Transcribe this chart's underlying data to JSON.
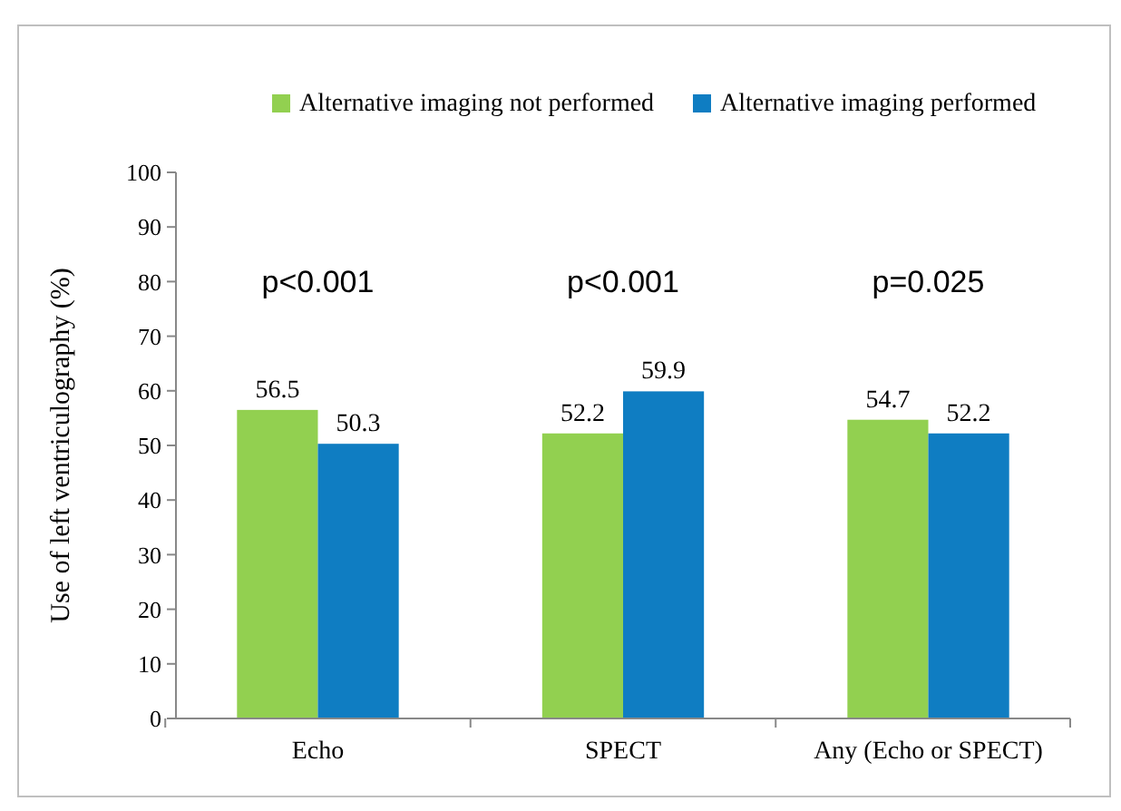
{
  "chart_data": {
    "type": "bar",
    "ylabel": "Use of left ventriculography (%)",
    "categories": [
      "Echo",
      "SPECT",
      "Any (Echo or SPECT)"
    ],
    "series": [
      {
        "name": "Alternative imaging not performed",
        "color": "#92d050",
        "values": [
          56.5,
          52.2,
          54.7
        ]
      },
      {
        "name": "Alternative imaging performed",
        "color": "#0f7dc2",
        "values": [
          50.3,
          59.9,
          52.2
        ]
      }
    ],
    "ylim": [
      0,
      100
    ],
    "yticks": [
      0,
      10,
      20,
      30,
      40,
      50,
      60,
      70,
      80,
      90,
      100
    ],
    "data_labels": true,
    "legend": "top",
    "annotations": [
      "p<0.001",
      "p<0.001",
      "p=0.025"
    ]
  }
}
